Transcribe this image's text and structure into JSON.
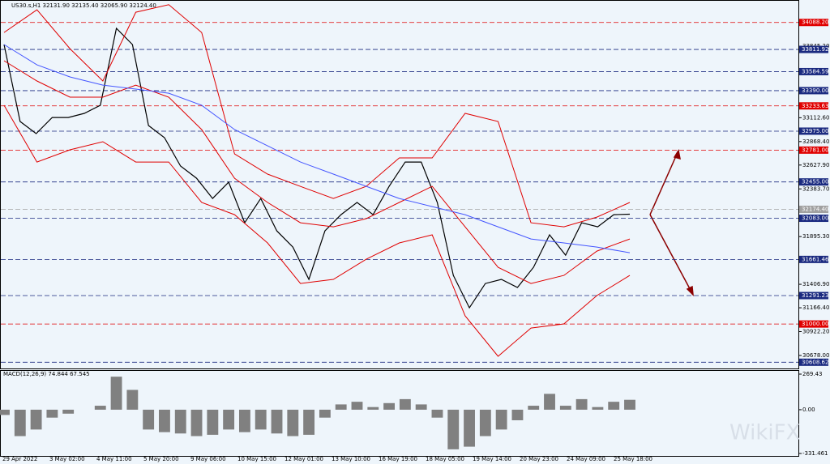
{
  "chart_data": [
    {
      "type": "line",
      "title": "US30.s,H1  32131.90 32135.40 32065.90 32124.40",
      "ylim": [
        30545,
        34285
      ],
      "yticks": [
        {
          "value": 33845.2,
          "label": "33845.20"
        },
        {
          "value": 33112.6,
          "label": "33112.60"
        },
        {
          "value": 32868.4,
          "label": "32868.40"
        },
        {
          "value": 32627.9,
          "label": "32627.90"
        },
        {
          "value": 32383.7,
          "label": "32383.70"
        },
        {
          "value": 31895.3,
          "label": "31895.30"
        },
        {
          "value": 31406.9,
          "label": "31406.90"
        },
        {
          "value": 31166.4,
          "label": "31166.40"
        },
        {
          "value": 30922.2,
          "label": "30922.20"
        },
        {
          "value": 30678,
          "label": "30678.00"
        }
      ],
      "xtick_labels": [
        "29 Apr 2022",
        "3 May 02:00",
        "4 May 11:00",
        "5 May 20:00",
        "9 May 06:00",
        "10 May 15:00",
        "12 May 01:00",
        "13 May 10:00",
        "16 May 19:00",
        "18 May 05:00",
        "19 May 14:00",
        "20 May 23:00",
        "24 May 09:00",
        "25 May 18:00"
      ],
      "series": [
        {
          "color": "#000000",
          "values": [
            33862,
            33074,
            32950,
            33115,
            33115,
            33157,
            33240,
            34028,
            33862,
            33033,
            32908,
            32618,
            32493,
            32286,
            32452,
            32037,
            32286,
            31954,
            31788,
            31457,
            31954,
            32120,
            32245,
            32120,
            32410,
            32659,
            32659,
            32245,
            31498,
            31166,
            31415,
            31457,
            31374,
            31581,
            31913,
            31705,
            32037,
            31995,
            32120,
            32124.4
          ]
        },
        {
          "color": "#e00000",
          "values": [
            33986,
            34218,
            33820,
            33489,
            34193,
            34270,
            33986,
            32742,
            32535,
            32409,
            32286,
            32410,
            32701,
            32701,
            33157,
            33074,
            32037,
            31995,
            32095,
            32245
          ]
        },
        {
          "color": "#e00000",
          "values": [
            33696,
            33489,
            33323,
            33323,
            33447,
            33323,
            32991,
            32493,
            32245,
            32037,
            31995,
            32079,
            32245,
            32410,
            31995,
            31581,
            31415,
            31498,
            31747,
            31871
          ]
        },
        {
          "color": "#e00000",
          "values": [
            33240,
            32659,
            32784,
            32867,
            32659,
            32659,
            32245,
            32120,
            31830,
            31415,
            31457,
            31664,
            31830,
            31913,
            31084,
            30669,
            30959,
            31001,
            31291,
            31498
          ]
        },
        {
          "color": "#4455ff",
          "values": [
            33862,
            33654,
            33530,
            33447,
            33406,
            33364,
            33240,
            32991,
            32825,
            32659,
            32535,
            32410,
            32286,
            32203,
            32120,
            31995,
            31871,
            31830,
            31788,
            31730
          ]
        }
      ],
      "levels": [
        {
          "value": 34088.2,
          "label": "34088.20",
          "color": "#e00000"
        },
        {
          "value": 33811.92,
          "label": "33811.92",
          "color": "#1a2a80"
        },
        {
          "value": 33584.59,
          "label": "33584.59",
          "color": "#1a2a80"
        },
        {
          "value": 33390,
          "label": "33390.00",
          "color": "#1a2a80"
        },
        {
          "value": 33233.63,
          "label": "33233.63",
          "color": "#e00000"
        },
        {
          "value": 32975,
          "label": "32975.00",
          "color": "#1a2a80"
        },
        {
          "value": 32781,
          "label": "32781.00",
          "color": "#e00000"
        },
        {
          "value": 32455,
          "label": "32455.00",
          "color": "#1a2a80"
        },
        {
          "value": 32174.4,
          "label": "32174.40",
          "color": "#a0a0a0"
        },
        {
          "value": 32083,
          "label": "32083.00",
          "color": "#1a2a80"
        },
        {
          "value": 31661.46,
          "label": "31661.46",
          "color": "#1a2a80"
        },
        {
          "value": 31291.23,
          "label": "31291.23",
          "color": "#1a2a80"
        },
        {
          "value": 31000,
          "label": "31000.00",
          "color": "#e00000"
        },
        {
          "value": 30608.62,
          "label": "30608.62",
          "color": "#1a2a80"
        }
      ],
      "watermark": "WikiFX"
    },
    {
      "type": "bar",
      "title": "MACD(12,26,9) 74.844 67.545",
      "ylim": [
        -331.461,
        269.43
      ],
      "yticks": [
        269.43,
        {
          "value": 0,
          "label": "0.00"
        },
        -331.461
      ],
      "color": "#808080",
      "values": [
        -40,
        -200,
        -150,
        -60,
        -30,
        0,
        30,
        250,
        150,
        -150,
        -170,
        -180,
        -200,
        -190,
        -150,
        -170,
        -150,
        -180,
        -200,
        -190,
        -60,
        40,
        60,
        20,
        50,
        80,
        40,
        -60,
        -300,
        -280,
        -200,
        -150,
        -80,
        30,
        120,
        30,
        80,
        20,
        60,
        75
      ]
    }
  ]
}
